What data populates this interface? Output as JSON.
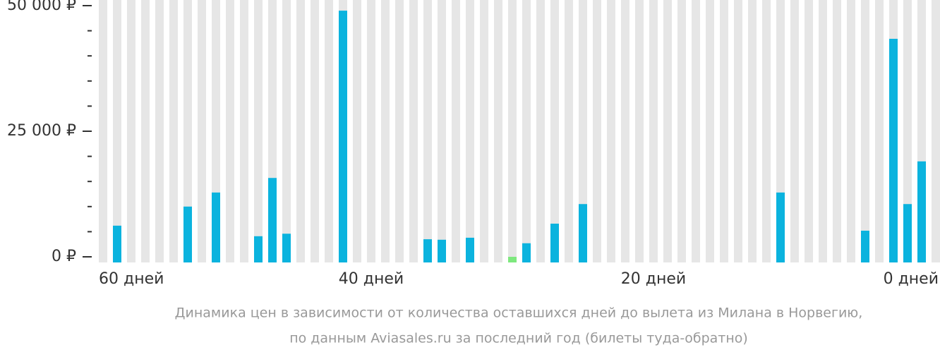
{
  "chart_data": {
    "type": "bar",
    "x": [
      59,
      58,
      57,
      56,
      55,
      54,
      53,
      52,
      51,
      50,
      49,
      48,
      47,
      46,
      45,
      44,
      43,
      42,
      41,
      40,
      39,
      38,
      37,
      36,
      35,
      34,
      33,
      32,
      31,
      30,
      29,
      28,
      27,
      26,
      25,
      24,
      23,
      22,
      21,
      20,
      19,
      18,
      17,
      16,
      15,
      14,
      13,
      12,
      11,
      10,
      9,
      8,
      7,
      6,
      5,
      4,
      3,
      2,
      1,
      0
    ],
    "series": [
      {
        "color": "#0bb3de",
        "values": [
          null,
          6200,
          null,
          null,
          null,
          null,
          10000,
          null,
          12800,
          null,
          null,
          4100,
          15700,
          4600,
          null,
          null,
          null,
          49000,
          null,
          null,
          null,
          null,
          null,
          3500,
          3400,
          null,
          3800,
          null,
          null,
          null,
          2700,
          null,
          6600,
          null,
          10500,
          null,
          null,
          null,
          null,
          null,
          null,
          null,
          null,
          null,
          null,
          null,
          null,
          null,
          12800,
          null,
          null,
          null,
          null,
          null,
          5200,
          null,
          43400,
          10500,
          19000,
          null
        ]
      },
      {
        "color": "#7ee87e",
        "values": [
          null,
          null,
          null,
          null,
          null,
          null,
          null,
          null,
          null,
          null,
          null,
          null,
          null,
          null,
          null,
          null,
          null,
          null,
          null,
          null,
          null,
          null,
          null,
          null,
          null,
          null,
          null,
          null,
          null,
          0,
          null,
          null,
          null,
          null,
          null,
          null,
          null,
          null,
          null,
          null,
          null,
          null,
          null,
          null,
          null,
          null,
          null,
          null,
          null,
          null,
          null,
          null,
          null,
          null,
          null,
          null,
          null,
          null,
          null,
          null
        ]
      }
    ],
    "background_color": "#e6e6e6",
    "xlim": [
      60,
      0
    ],
    "xticks": [
      {
        "value": 60,
        "label": "60 дней"
      },
      {
        "value": 40,
        "label": "40 дней"
      },
      {
        "value": 20,
        "label": "20 дней"
      },
      {
        "value": 0,
        "label": "0 дней"
      }
    ],
    "ylim": [
      0,
      50000
    ],
    "yticks": [
      {
        "value": 0,
        "label": "0 ₽"
      },
      {
        "value": 25000,
        "label": "25 000 ₽"
      },
      {
        "value": 50000,
        "label": "50 000 ₽"
      }
    ],
    "yminorticks": [
      5000,
      10000,
      15000,
      20000,
      30000,
      35000,
      40000,
      45000
    ],
    "caption": [
      "Динамика цен в зависимости от количества оставшихся дней до вылета из Милана в Норвегию,",
      "по данным Aviasales.ru за последний год (билеты туда-обратно)"
    ]
  }
}
